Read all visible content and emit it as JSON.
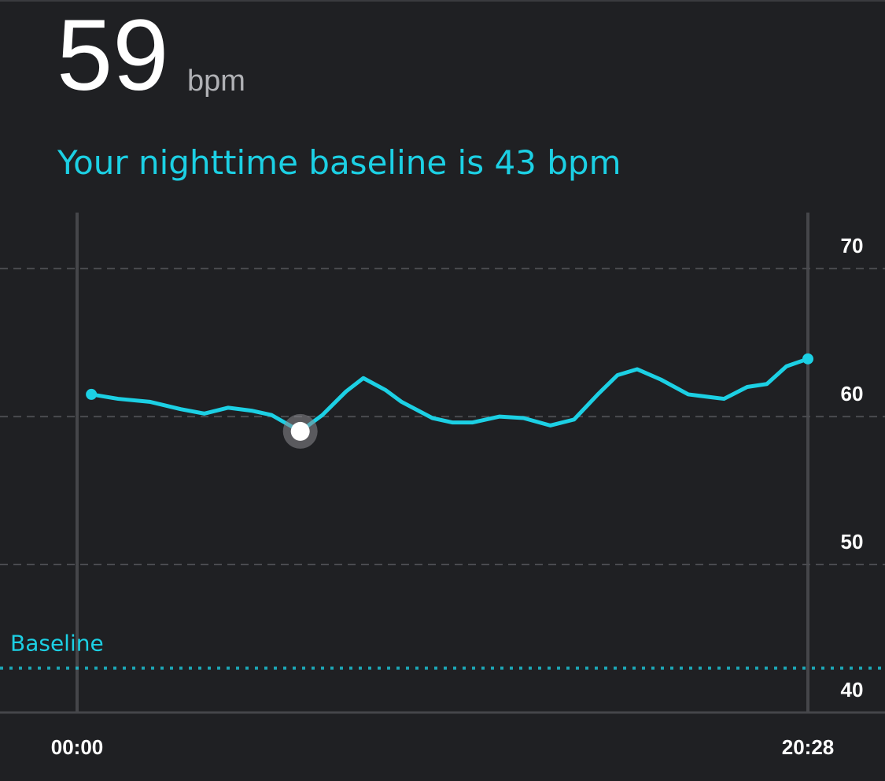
{
  "header": {
    "value": "59",
    "unit": "bpm",
    "subtitle": "Your nighttime baseline is 43 bpm"
  },
  "chart_data": {
    "type": "line",
    "x": [
      24,
      69,
      122,
      174,
      214,
      254,
      293,
      327,
      375,
      412,
      452,
      481,
      518,
      545,
      597,
      631,
      664,
      710,
      750,
      795,
      835,
      875,
      908,
      941,
      981,
      1027,
      1087,
      1126,
      1159,
      1192,
      1228
    ],
    "series": [
      {
        "color": "#1cd0e4",
        "values": [
          61.5,
          61.2,
          61.0,
          60.5,
          60.2,
          60.6,
          60.4,
          60.1,
          59.0,
          60.1,
          61.7,
          62.6,
          61.8,
          61.0,
          59.9,
          59.6,
          59.6,
          60.0,
          59.9,
          59.4,
          59.8,
          61.5,
          62.8,
          63.2,
          62.5,
          61.5,
          61.2,
          62.0,
          62.2,
          63.4,
          63.9
        ]
      }
    ],
    "selected_index": 8,
    "xlim": [
      0,
      1228
    ],
    "xticks": [
      {
        "value": 0,
        "label": "00:00"
      },
      {
        "value": 1228,
        "label": "20:28"
      }
    ],
    "ylim": [
      40,
      74
    ],
    "yticks": [
      40,
      50,
      60,
      70
    ],
    "grid": true,
    "baseline": {
      "label": "Baseline",
      "value": 43,
      "color": "#1cd0e4"
    }
  }
}
